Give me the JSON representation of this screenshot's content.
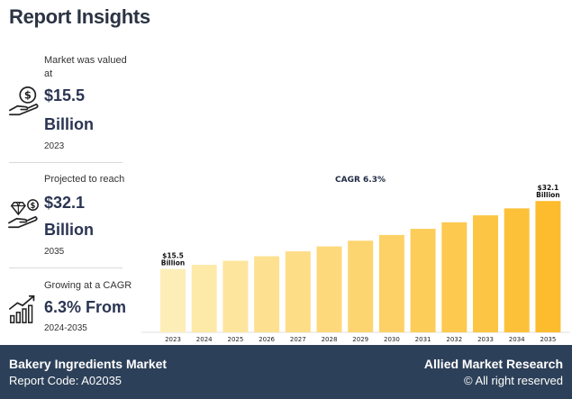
{
  "title": "Report Insights",
  "stats": [
    {
      "label": "Market was valued at",
      "value_line1": "$15.5",
      "value_line2": "Billion",
      "sub": "2023",
      "icon": "money-hand-icon"
    },
    {
      "label": "Projected to reach",
      "value_line1": "$32.1",
      "value_line2": "Billion",
      "sub": "2035",
      "icon": "diamond-hand-icon"
    },
    {
      "label": "Growing at a CAGR",
      "value_line1": "6.3% From",
      "value_line2": "",
      "sub": "2024-2035",
      "icon": "growth-chart-icon"
    }
  ],
  "chart_data": {
    "type": "bar",
    "title": "CAGR 6.3%",
    "categories": [
      "2023",
      "2024",
      "2025",
      "2026",
      "2027",
      "2028",
      "2029",
      "2030",
      "2031",
      "2032",
      "2033",
      "2034",
      "2035"
    ],
    "values": [
      15.5,
      16.5,
      17.5,
      18.6,
      19.8,
      21.0,
      22.4,
      23.8,
      25.3,
      26.9,
      28.6,
      30.3,
      32.1
    ],
    "data_labels": [
      {
        "index": 0,
        "line1": "$15.5",
        "line2": "Billion"
      },
      {
        "index": 12,
        "line1": "$32.1",
        "line2": "Billion"
      }
    ],
    "ylim": [
      0,
      35
    ],
    "colors": [
      "#fdeeb8",
      "#fde9a8",
      "#fde59d",
      "#fde191",
      "#fddd86",
      "#fdd97b",
      "#fdd570",
      "#fdd165",
      "#fdcd5a",
      "#fdc94f",
      "#fdc544",
      "#fdc139",
      "#fcbc2e"
    ]
  },
  "footer": {
    "market": "Bakery Ingredients Market",
    "code": "Report Code: A02035",
    "brand": "Allied Market Research",
    "rights": "© All right reserved"
  }
}
